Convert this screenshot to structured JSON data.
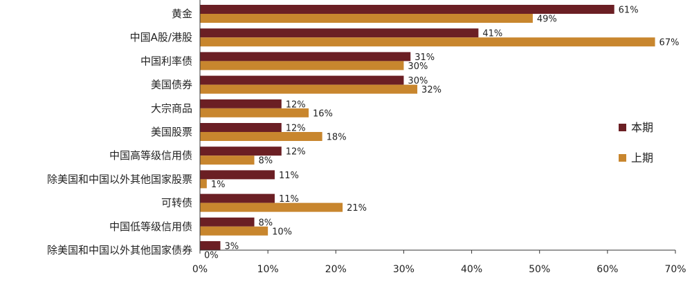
{
  "chart_data": {
    "type": "bar",
    "orientation": "horizontal",
    "categories": [
      "黄金",
      "中国A股/港股",
      "中国利率债",
      "美国债券",
      "大宗商品",
      "美国股票",
      "中国高等级信用债",
      "除美国和中国以外其他国家股票",
      "可转债",
      "中国低等级信用债",
      "除美国和中国以外其他国家债券"
    ],
    "series": [
      {
        "name": "本期",
        "values": [
          61,
          41,
          31,
          30,
          12,
          12,
          12,
          11,
          11,
          8,
          3
        ],
        "color": "#6B1F24"
      },
      {
        "name": "上期",
        "values": [
          49,
          67,
          30,
          32,
          16,
          18,
          8,
          1,
          21,
          10,
          0
        ],
        "color": "#C8862E"
      }
    ],
    "xlim": [
      0,
      70
    ],
    "xticks": [
      0,
      10,
      20,
      30,
      40,
      50,
      60,
      70
    ],
    "tick_suffix": "%",
    "value_suffix": "%",
    "grid": false,
    "legend_position": "right"
  }
}
